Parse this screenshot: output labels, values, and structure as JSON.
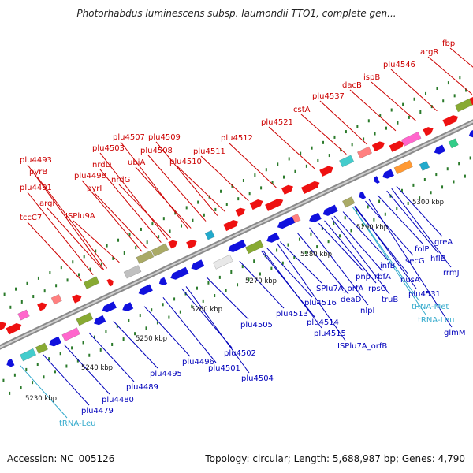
{
  "title": "Photorhabdus luminescens subsp. laumondii TTO1, complete gen...",
  "footer": {
    "accession": "Accession: NC_005126",
    "summary": "Topology: circular; Length: 5,688,987 bp; Genes: 4,790"
  },
  "colors": {
    "forward_label": "#cc0000",
    "reverse_label": "#0000bb",
    "rna_label": "#33aacc",
    "backbone": "#9a9a9a",
    "tick": "#2a7a2a"
  },
  "kbp_labels": [
    "5230 kbp",
    "5240 kbp",
    "5250 kbp",
    "5260 kbp",
    "5270 kbp",
    "5280 kbp",
    "5290 kbp",
    "5300 kbp"
  ],
  "forward_genes": [
    "fbp",
    "argR",
    "plu4546",
    "ispB",
    "dacB",
    "plu4537",
    "cstA",
    "plu4521",
    "plu4512",
    "plu4511",
    "plu4510",
    "plu4509",
    "plu4508",
    "plu4507",
    "ubiA",
    "plu4503",
    "nrdD",
    "nrdG",
    "plu4498",
    "pyrI",
    "plu4493",
    "pyrB",
    "plu4491",
    "argI",
    "ISPlu9A",
    "tccC7"
  ],
  "reverse_genes": [
    "greA",
    "hflB",
    "rrmJ",
    "folP",
    "secG",
    "nusA",
    "plu4531",
    "glmM",
    "infB",
    "rbfA",
    "truB",
    "pnp",
    "rpsO",
    "nlpI",
    "deaD",
    "ISPlu7A_orfA",
    "plu4516",
    "plu4514",
    "plu4515",
    "ISPlu7A_orfB",
    "plu4513",
    "plu4505",
    "plu4502",
    "plu4501",
    "plu4504",
    "plu4496",
    "plu4495",
    "plu4489",
    "plu4480",
    "plu4479"
  ],
  "rna_genes": [
    "tRNA-Met",
    "tRNA-Leu",
    "tRNA-Leu"
  ]
}
